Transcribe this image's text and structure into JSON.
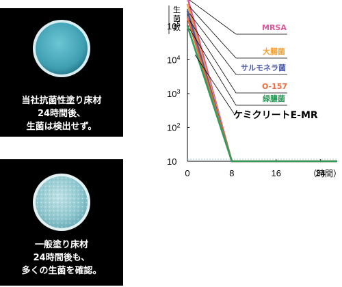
{
  "panels": {
    "treated": {
      "lines": [
        "当社抗菌性塗り床材",
        "24時間後、",
        "生菌は検出せず。"
      ],
      "dish_color": "#5bb9c8"
    },
    "untreated": {
      "lines": [
        "一般塗り床材",
        "24時間後も、",
        "多くの生菌を確認。"
      ],
      "dish_color": "#9fd0d6"
    }
  },
  "chart_data": {
    "type": "line",
    "ylabel_chars": [
      "生",
      "菌",
      "数"
    ],
    "x_unit": "（時間）",
    "x_ticks": [
      "0",
      "8",
      "16",
      "24"
    ],
    "y_ticks": [
      {
        "base": "10",
        "exp": "5"
      },
      {
        "base": "10",
        "exp": "4"
      },
      {
        "base": "10",
        "exp": "3"
      },
      {
        "base": "10",
        "exp": "2"
      },
      {
        "base": "10",
        "exp": ""
      }
    ],
    "log_scale": true,
    "xlim": [
      0,
      27
    ],
    "ylim_exp": [
      1,
      5.9
    ],
    "product_label": "ケミクリートE-MR",
    "series": [
      {
        "name": "MRSA",
        "color": "#e0559a",
        "values": [
          [
            0,
            5.85
          ],
          [
            8,
            1
          ]
        ]
      },
      {
        "name": "大腸菌",
        "color": "#f0a23a",
        "values": [
          [
            0,
            5.65
          ],
          [
            8,
            1
          ]
        ]
      },
      {
        "name": "サルモネラ菌",
        "color": "#4a5aa8",
        "values": [
          [
            0,
            5.45
          ],
          [
            8,
            1
          ]
        ]
      },
      {
        "name": "O-157",
        "color": "#ee6a3a",
        "values": [
          [
            0,
            5.25
          ],
          [
            8,
            1
          ]
        ]
      },
      {
        "name": "緑膿菌",
        "color": "#2f9e5a",
        "values": [
          [
            0,
            5.0
          ],
          [
            8,
            1
          ]
        ]
      }
    ]
  }
}
